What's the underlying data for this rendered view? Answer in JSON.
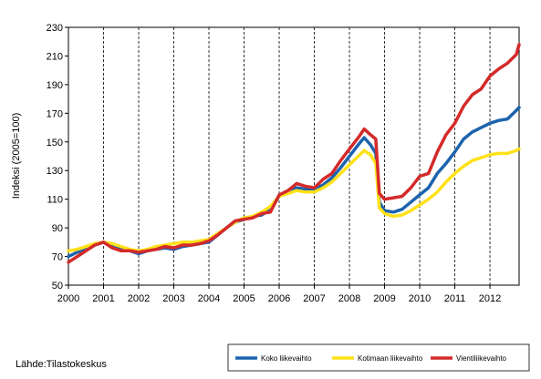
{
  "source_note": "Lähde:Tilastokeskus",
  "chart_data": {
    "type": "line",
    "title": "",
    "xlabel": "",
    "ylabel": "Indeksi (2005=100)",
    "xlim": [
      2000.0,
      2012.83
    ],
    "ylim": [
      50,
      230
    ],
    "yticks": [
      50,
      70,
      90,
      110,
      130,
      150,
      170,
      190,
      210,
      230
    ],
    "xticks": [
      "2000",
      "2001",
      "2002",
      "2003",
      "2004",
      "2005",
      "2006",
      "2007",
      "2008",
      "2009",
      "2010",
      "2011",
      "2012"
    ],
    "grid": "vertical dashed at year boundaries",
    "legend_position": "bottom-right",
    "series": [
      {
        "name": "Koko liikevaihto",
        "color": "#1c63ad",
        "points": [
          [
            2000.0,
            70
          ],
          [
            2000.25,
            73
          ],
          [
            2000.5,
            75
          ],
          [
            2000.75,
            78
          ],
          [
            2001.0,
            80
          ],
          [
            2001.25,
            77
          ],
          [
            2001.5,
            75
          ],
          [
            2001.75,
            74
          ],
          [
            2002.0,
            72
          ],
          [
            2002.25,
            74
          ],
          [
            2002.5,
            75
          ],
          [
            2002.75,
            76
          ],
          [
            2003.0,
            75
          ],
          [
            2003.25,
            77
          ],
          [
            2003.5,
            78
          ],
          [
            2003.75,
            79
          ],
          [
            2004.0,
            80
          ],
          [
            2004.25,
            85
          ],
          [
            2004.5,
            90
          ],
          [
            2004.75,
            94
          ],
          [
            2005.0,
            96
          ],
          [
            2005.25,
            98
          ],
          [
            2005.5,
            99
          ],
          [
            2005.75,
            103
          ],
          [
            2006.0,
            112
          ],
          [
            2006.25,
            115
          ],
          [
            2006.5,
            118
          ],
          [
            2006.75,
            117
          ],
          [
            2007.0,
            117
          ],
          [
            2007.25,
            120
          ],
          [
            2007.5,
            125
          ],
          [
            2007.75,
            132
          ],
          [
            2008.0,
            140
          ],
          [
            2008.25,
            148
          ],
          [
            2008.42,
            153
          ],
          [
            2008.6,
            148
          ],
          [
            2008.75,
            142
          ],
          [
            2008.85,
            108
          ],
          [
            2009.0,
            102
          ],
          [
            2009.25,
            101
          ],
          [
            2009.5,
            103
          ],
          [
            2009.75,
            108
          ],
          [
            2010.0,
            113
          ],
          [
            2010.25,
            118
          ],
          [
            2010.5,
            128
          ],
          [
            2010.75,
            135
          ],
          [
            2011.0,
            143
          ],
          [
            2011.25,
            152
          ],
          [
            2011.5,
            157
          ],
          [
            2011.75,
            160
          ],
          [
            2012.0,
            163
          ],
          [
            2012.25,
            165
          ],
          [
            2012.5,
            166
          ],
          [
            2012.75,
            172
          ],
          [
            2012.83,
            174
          ]
        ]
      },
      {
        "name": "Kotimaan liikevaihto",
        "color": "#ffe119",
        "points": [
          [
            2000.0,
            74
          ],
          [
            2000.25,
            75
          ],
          [
            2000.5,
            77
          ],
          [
            2000.75,
            79
          ],
          [
            2001.0,
            80
          ],
          [
            2001.25,
            79
          ],
          [
            2001.5,
            77
          ],
          [
            2001.75,
            75
          ],
          [
            2002.0,
            74
          ],
          [
            2002.25,
            75
          ],
          [
            2002.5,
            77
          ],
          [
            2002.75,
            78
          ],
          [
            2003.0,
            79
          ],
          [
            2003.25,
            80
          ],
          [
            2003.5,
            80
          ],
          [
            2003.75,
            81
          ],
          [
            2004.0,
            82
          ],
          [
            2004.25,
            86
          ],
          [
            2004.5,
            90
          ],
          [
            2004.75,
            94
          ],
          [
            2005.0,
            97
          ],
          [
            2005.25,
            98
          ],
          [
            2005.5,
            101
          ],
          [
            2005.75,
            105
          ],
          [
            2006.0,
            112
          ],
          [
            2006.25,
            114
          ],
          [
            2006.5,
            116
          ],
          [
            2006.75,
            115
          ],
          [
            2007.0,
            115
          ],
          [
            2007.25,
            118
          ],
          [
            2007.5,
            122
          ],
          [
            2007.75,
            128
          ],
          [
            2008.0,
            134
          ],
          [
            2008.25,
            140
          ],
          [
            2008.42,
            144
          ],
          [
            2008.6,
            141
          ],
          [
            2008.75,
            135
          ],
          [
            2008.85,
            104
          ],
          [
            2009.0,
            100
          ],
          [
            2009.25,
            98
          ],
          [
            2009.5,
            99
          ],
          [
            2009.75,
            102
          ],
          [
            2010.0,
            106
          ],
          [
            2010.25,
            110
          ],
          [
            2010.5,
            115
          ],
          [
            2010.75,
            122
          ],
          [
            2011.0,
            128
          ],
          [
            2011.25,
            133
          ],
          [
            2011.5,
            137
          ],
          [
            2011.75,
            139
          ],
          [
            2012.0,
            141
          ],
          [
            2012.25,
            142
          ],
          [
            2012.5,
            142
          ],
          [
            2012.75,
            144
          ],
          [
            2012.83,
            145
          ]
        ]
      },
      {
        "name": "Vientiliikevaihto",
        "color": "#d42a2a",
        "points": [
          [
            2000.0,
            66
          ],
          [
            2000.25,
            70
          ],
          [
            2000.5,
            74
          ],
          [
            2000.75,
            78
          ],
          [
            2001.0,
            80
          ],
          [
            2001.25,
            76
          ],
          [
            2001.5,
            74
          ],
          [
            2001.75,
            74
          ],
          [
            2002.0,
            73
          ],
          [
            2002.25,
            74
          ],
          [
            2002.5,
            75
          ],
          [
            2002.75,
            77
          ],
          [
            2003.0,
            76
          ],
          [
            2003.25,
            78
          ],
          [
            2003.5,
            78
          ],
          [
            2003.75,
            79
          ],
          [
            2004.0,
            81
          ],
          [
            2004.25,
            85
          ],
          [
            2004.5,
            90
          ],
          [
            2004.75,
            95
          ],
          [
            2005.0,
            96
          ],
          [
            2005.25,
            97
          ],
          [
            2005.5,
            100
          ],
          [
            2005.75,
            101
          ],
          [
            2006.0,
            113
          ],
          [
            2006.25,
            116
          ],
          [
            2006.5,
            121
          ],
          [
            2006.75,
            119
          ],
          [
            2007.0,
            118
          ],
          [
            2007.25,
            124
          ],
          [
            2007.5,
            128
          ],
          [
            2007.75,
            137
          ],
          [
            2008.0,
            145
          ],
          [
            2008.25,
            153
          ],
          [
            2008.42,
            159
          ],
          [
            2008.6,
            155
          ],
          [
            2008.75,
            152
          ],
          [
            2008.85,
            114
          ],
          [
            2009.0,
            110
          ],
          [
            2009.25,
            111
          ],
          [
            2009.5,
            112
          ],
          [
            2009.75,
            118
          ],
          [
            2010.0,
            126
          ],
          [
            2010.25,
            128
          ],
          [
            2010.5,
            143
          ],
          [
            2010.75,
            155
          ],
          [
            2011.0,
            163
          ],
          [
            2011.25,
            175
          ],
          [
            2011.5,
            183
          ],
          [
            2011.75,
            187
          ],
          [
            2012.0,
            196
          ],
          [
            2012.25,
            201
          ],
          [
            2012.5,
            205
          ],
          [
            2012.75,
            211
          ],
          [
            2012.83,
            218
          ]
        ]
      }
    ]
  }
}
